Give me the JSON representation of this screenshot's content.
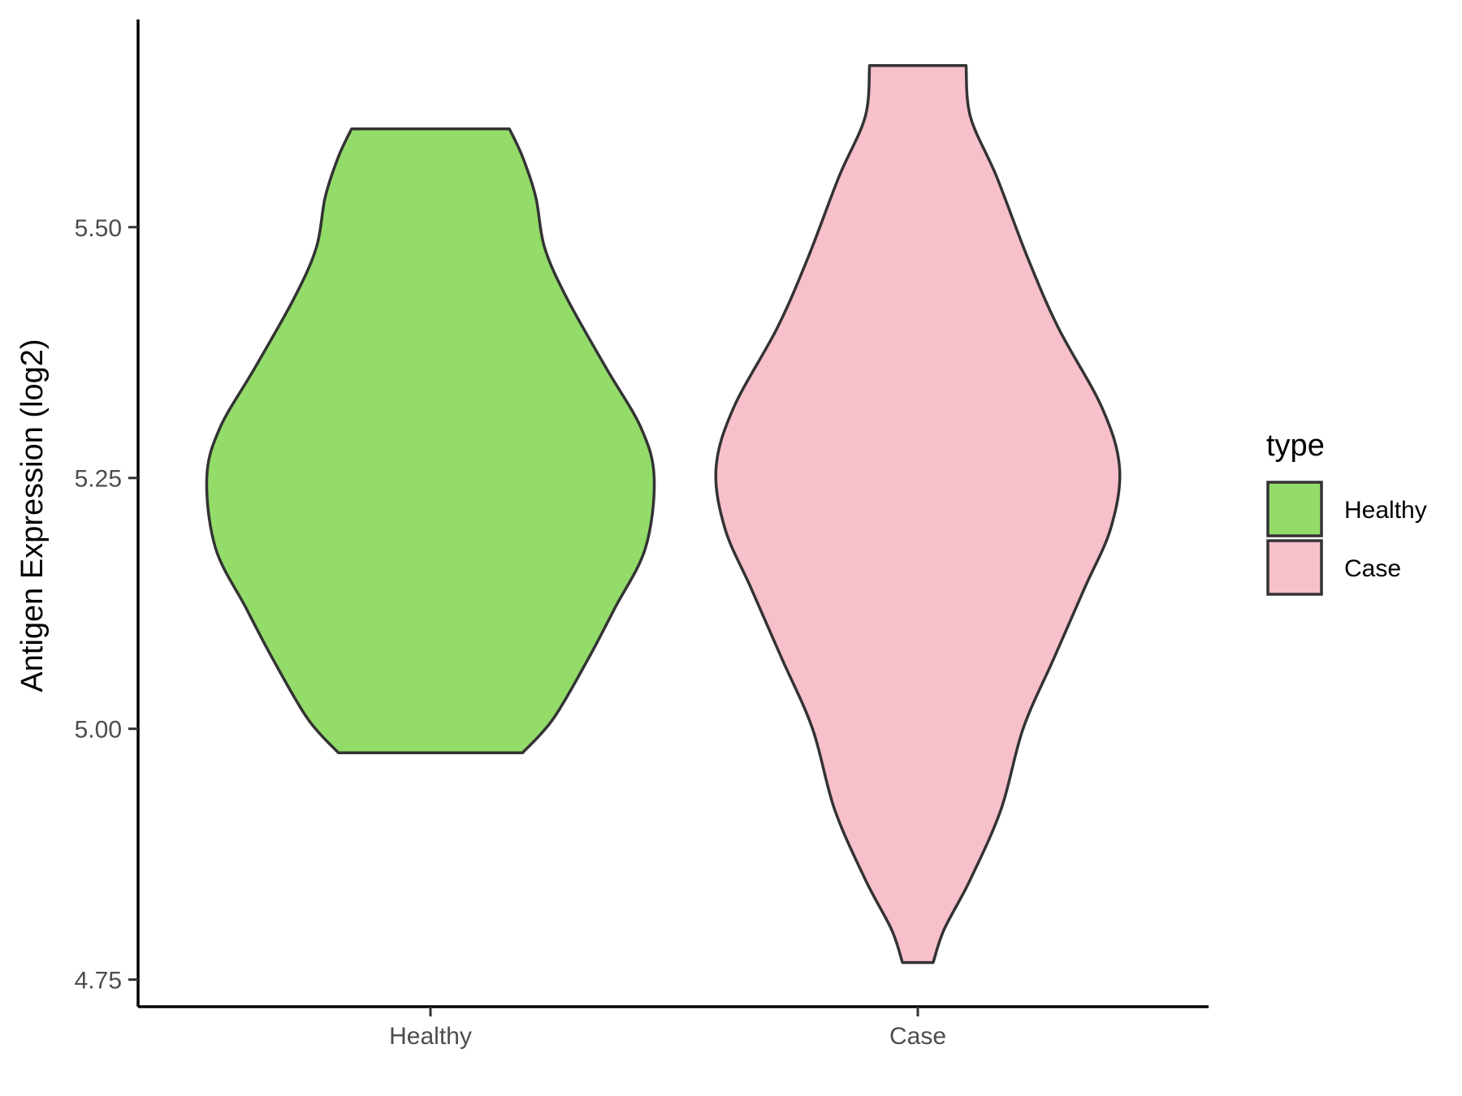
{
  "chart_data": {
    "type": "violin",
    "title": "",
    "xlabel": "",
    "ylabel": "Antigen Expression (log2)",
    "ylim": [
      4.723,
      5.707
    ],
    "yticks": [
      4.75,
      5.0,
      5.25,
      5.5
    ],
    "ytick_labels": [
      "4.75",
      "5.00",
      "5.25",
      "5.50"
    ],
    "categories": [
      "Healthy",
      "Case"
    ],
    "grid": false,
    "legend": {
      "title": "type",
      "position": "right",
      "entries": [
        "Healthy",
        "Case"
      ]
    },
    "series": [
      {
        "name": "Healthy",
        "color": "#93DC6A",
        "min": 4.976,
        "max": 5.598,
        "density_profile": [
          [
            4.976,
            0.21
          ],
          [
            5.01,
            0.28
          ],
          [
            5.07,
            0.36
          ],
          [
            5.12,
            0.42
          ],
          [
            5.18,
            0.49
          ],
          [
            5.25,
            0.51
          ],
          [
            5.3,
            0.48
          ],
          [
            5.36,
            0.4
          ],
          [
            5.43,
            0.31
          ],
          [
            5.48,
            0.26
          ],
          [
            5.53,
            0.24
          ],
          [
            5.57,
            0.21
          ],
          [
            5.598,
            0.18
          ]
        ]
      },
      {
        "name": "Case",
        "color": "#F8C0CB",
        "min": 4.767,
        "max": 5.661,
        "density_profile": [
          [
            4.767,
            0.035
          ],
          [
            4.8,
            0.06
          ],
          [
            4.85,
            0.12
          ],
          [
            4.92,
            0.19
          ],
          [
            5.0,
            0.24
          ],
          [
            5.07,
            0.31
          ],
          [
            5.14,
            0.38
          ],
          [
            5.2,
            0.44
          ],
          [
            5.26,
            0.46
          ],
          [
            5.32,
            0.42
          ],
          [
            5.4,
            0.32
          ],
          [
            5.47,
            0.25
          ],
          [
            5.55,
            0.18
          ],
          [
            5.61,
            0.12
          ],
          [
            5.661,
            0.11
          ]
        ]
      }
    ]
  }
}
